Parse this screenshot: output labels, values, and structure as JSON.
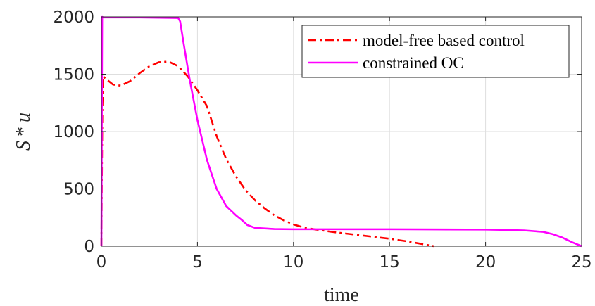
{
  "chart_data": {
    "type": "line",
    "xlabel": "time",
    "ylabel": "S * u",
    "xlim": [
      0,
      25
    ],
    "ylim": [
      0,
      2000
    ],
    "xticks": [
      "0",
      "5",
      "10",
      "15",
      "20",
      "25"
    ],
    "yticks": [
      "0",
      "500",
      "1000",
      "1500",
      "2000"
    ],
    "grid": true,
    "legend_position": "top-right",
    "series": [
      {
        "name": "model-free based control",
        "color": "#ff0000",
        "line_style": "dash-dot",
        "x": [
          0,
          0.05,
          0.1,
          0.3,
          0.6,
          1.0,
          1.5,
          2.0,
          2.5,
          3.0,
          3.5,
          4.0,
          4.5,
          5.0,
          5.5,
          6.0,
          6.5,
          7.0,
          7.5,
          8.0,
          8.5,
          9.0,
          9.5,
          10.0,
          10.5,
          11.0,
          12.0,
          13.0,
          14.0,
          15.0,
          16.0,
          17.0,
          17.3
        ],
        "y": [
          0,
          1200,
          1480,
          1450,
          1410,
          1400,
          1440,
          1510,
          1570,
          1605,
          1610,
          1570,
          1480,
          1360,
          1220,
          960,
          760,
          610,
          490,
          400,
          330,
          270,
          225,
          190,
          165,
          150,
          125,
          105,
          85,
          65,
          40,
          10,
          0
        ]
      },
      {
        "name": "constrained OC",
        "color": "#ff00ff",
        "line_style": "solid",
        "x": [
          0,
          0.04,
          0.1,
          0.5,
          1.0,
          2.0,
          3.0,
          4.0,
          4.1,
          4.3,
          4.6,
          5.0,
          5.5,
          6.0,
          6.5,
          7.0,
          7.3,
          7.6,
          8.0,
          9.0,
          10.0,
          15.0,
          20.0,
          21.0,
          22.0,
          23.0,
          23.5,
          24.0,
          24.5,
          25.0
        ],
        "y": [
          0,
          2000,
          1995,
          1995,
          1995,
          1995,
          1993,
          1990,
          1960,
          1750,
          1450,
          1100,
          750,
          500,
          350,
          270,
          230,
          185,
          160,
          150,
          148,
          148,
          145,
          142,
          138,
          125,
          105,
          75,
          35,
          0
        ]
      }
    ]
  }
}
